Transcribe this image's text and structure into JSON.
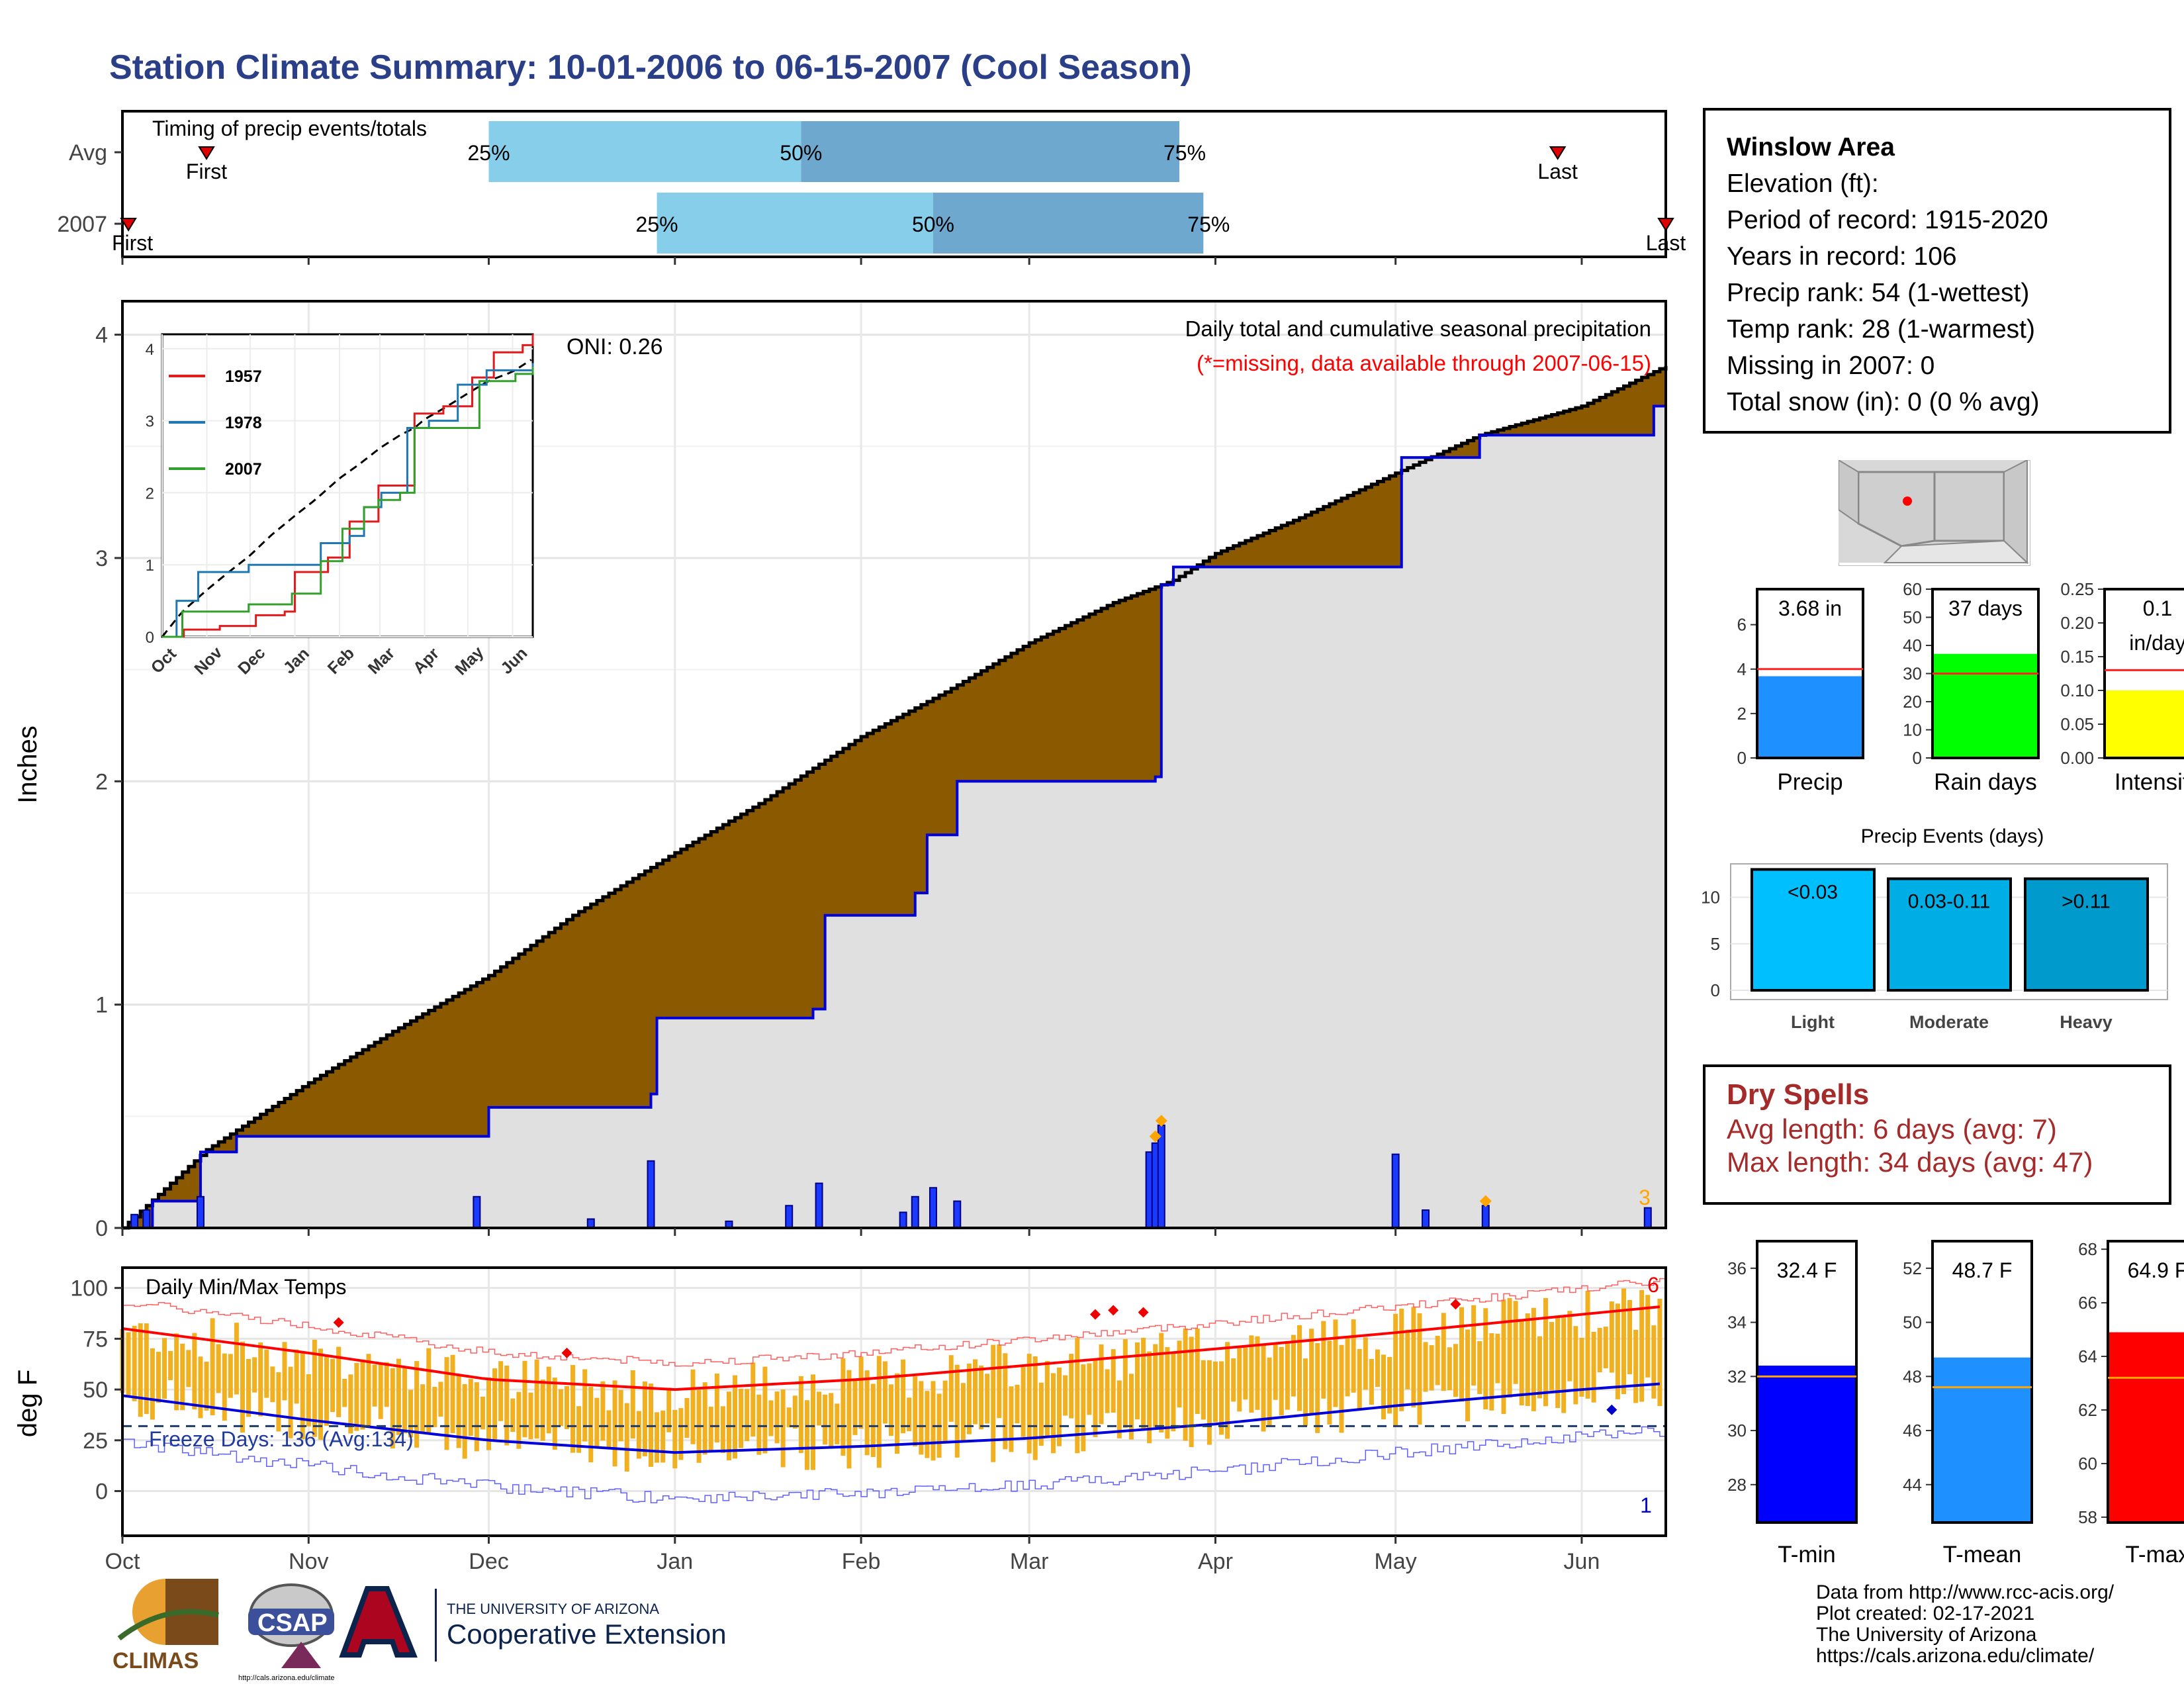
{
  "page": {
    "title": "Station Climate Summary: 10-01-2006 to 06-15-2007 (Cool Season)"
  },
  "timing": {
    "label": "Timing of precip events/totals",
    "rows": [
      {
        "name": "Avg",
        "first": "2006-10-15",
        "p25": "2006-12-01",
        "p50": "2007-01-22",
        "p75": "2007-03-26",
        "last": "2007-05-28"
      },
      {
        "name": "2007",
        "first": "2006-10-02",
        "p25": "2006-12-29",
        "p50": "2007-02-13",
        "p75": "2007-03-30",
        "last": "2007-06-15"
      }
    ],
    "first_label": "First",
    "last_label": "Last",
    "p25_label": "25%",
    "p50_label": "50%",
    "p75_label": "75%"
  },
  "precip_panel": {
    "title": "Daily total and cumulative seasonal precipitation",
    "subtitle": "(*=missing, data available through 2007-06-15)",
    "oni": "ONI: 0.26",
    "ylabel": "Inches",
    "corner_count": "3"
  },
  "inset": {
    "years": [
      "1957",
      "1978",
      "2007"
    ]
  },
  "temp_panel": {
    "title": "Daily Min/Max Temps",
    "freeze": "Freeze Days: 136 (Avg:134)",
    "ylabel": "deg F",
    "count_max": "6",
    "count_min": "1"
  },
  "months": [
    "Oct",
    "Nov",
    "Dec",
    "Jan",
    "Feb",
    "Mar",
    "Apr",
    "May",
    "Jun"
  ],
  "station": {
    "name": "Winslow Area",
    "lines": [
      "Elevation (ft):",
      "Period of record: 1915-2020",
      "Years in record: 106",
      "Precip rank: 54 (1-wettest)",
      "Temp rank: 28 (1-warmest)",
      "Missing in 2007: 0",
      "Total snow (in): 0 (0 % avg)"
    ]
  },
  "mini_bars": [
    {
      "label": "Precip",
      "value_text": "3.68 in",
      "value": 3.68,
      "avg": 4.0,
      "ymax": 7.6,
      "ticks": [
        0,
        2,
        4,
        6
      ],
      "color": "#1e90ff"
    },
    {
      "label": "Rain days",
      "value_text": "37 days",
      "value": 37,
      "avg": 30,
      "ymax": 60,
      "ticks": [
        0,
        10,
        20,
        30,
        40,
        50,
        60
      ],
      "color": "#00ff00"
    },
    {
      "label": "Intensity",
      "value_text": "0.1\nin/day",
      "value": 0.1,
      "avg": 0.13,
      "ymax": 0.25,
      "ticks": [
        "0.00",
        "0.05",
        "0.10",
        "0.15",
        "0.20",
        "0.25"
      ],
      "color": "#ffff00"
    }
  ],
  "events": {
    "title": "Precip Events (days)",
    "categories": [
      "Light",
      "Moderate",
      "Heavy"
    ],
    "bar_labels": [
      "<0.03",
      "0.03-0.11",
      ">0.11"
    ],
    "values": [
      13,
      12,
      12
    ],
    "colors": [
      "#00bfff",
      "#00aee6",
      "#009acd"
    ],
    "ticks": [
      0,
      5,
      10
    ]
  },
  "dry_spells": {
    "title": "Dry Spells",
    "avg_line": "Avg length: 6 days (avg: 7)",
    "max_line": "Max length: 34 days (avg: 47)"
  },
  "temp_bars": [
    {
      "label": "T-min",
      "value_text": "32.4 F",
      "value": 32.4,
      "avg": 32.0,
      "ymin": 26.6,
      "ymax": 37.0,
      "ticks": [
        28,
        30,
        32,
        34,
        36
      ],
      "color": "#0000ff"
    },
    {
      "label": "T-mean",
      "value_text": "48.7 F",
      "value": 48.7,
      "avg": 47.6,
      "ymin": 42.6,
      "ymax": 53.0,
      "ticks": [
        44,
        46,
        48,
        50,
        52
      ],
      "color": "#1e90ff"
    },
    {
      "label": "T-max",
      "value_text": "64.9 F",
      "value": 64.9,
      "avg": 63.2,
      "ymin": 57.8,
      "ymax": 68.3,
      "ticks": [
        58,
        60,
        62,
        64,
        66,
        68
      ],
      "color": "#ff0000"
    }
  ],
  "logos": {
    "climas": "CLIMAS",
    "csap": "CSAP",
    "csap_url": "http://cals.arizona.edu/climate",
    "ua_small": "THE UNIVERSITY OF ARIZONA",
    "ua_big": "Cooperative Extension"
  },
  "credits": [
    "Data from http://www.rcc-acis.org/",
    "Plot created: 02-17-2021",
    "The University of Arizona",
    "https://cals.arizona.edu/climate/"
  ],
  "chart_data": [
    {
      "type": "line",
      "title": "Daily total and cumulative seasonal precipitation",
      "ylabel": "Inches",
      "ylim": [
        0,
        4.15
      ],
      "x_range": [
        "2006-10-01",
        "2007-06-15"
      ],
      "series": [
        {
          "name": "average cumulative",
          "x": [
            "2006-10-01",
            "2006-10-15",
            "2006-11-01",
            "2006-11-15",
            "2006-12-01",
            "2006-12-15",
            "2007-01-01",
            "2007-01-15",
            "2007-02-01",
            "2007-02-15",
            "2007-03-01",
            "2007-03-15",
            "2007-03-25",
            "2007-04-01",
            "2007-04-15",
            "2007-05-01",
            "2007-05-15",
            "2007-06-01",
            "2007-06-15"
          ],
          "y": [
            0,
            0.35,
            0.65,
            0.88,
            1.13,
            1.4,
            1.68,
            1.9,
            2.2,
            2.4,
            2.62,
            2.8,
            2.9,
            3.02,
            3.18,
            3.38,
            3.55,
            3.68,
            3.86
          ]
        },
        {
          "name": "2007 cumulative",
          "x": [
            "2006-10-01",
            "2006-10-06",
            "2006-10-14",
            "2006-10-20",
            "2006-11-29",
            "2006-12-01",
            "2006-12-28",
            "2006-12-29",
            "2007-01-24",
            "2007-01-26",
            "2007-02-10",
            "2007-02-12",
            "2007-02-17",
            "2007-03-22",
            "2007-03-23",
            "2007-03-25",
            "2007-05-01",
            "2007-05-02",
            "2007-05-15",
            "2007-06-13",
            "2007-06-15"
          ],
          "y": [
            0.0,
            0.12,
            0.34,
            0.41,
            0.41,
            0.54,
            0.6,
            0.94,
            0.98,
            1.4,
            1.5,
            1.76,
            2.0,
            2.02,
            2.88,
            2.96,
            2.96,
            3.45,
            3.55,
            3.68,
            3.68
          ]
        },
        {
          "name": "daily precipitation",
          "x": [
            "2006-10-03",
            "2006-10-05",
            "2006-10-14",
            "2006-11-29",
            "2006-12-18",
            "2006-12-28",
            "2007-01-10",
            "2007-01-20",
            "2007-01-25",
            "2007-02-08",
            "2007-02-10",
            "2007-02-13",
            "2007-02-17",
            "2007-03-21",
            "2007-03-22",
            "2007-03-23",
            "2007-05-01",
            "2007-05-06",
            "2007-05-16",
            "2007-06-12"
          ],
          "y": [
            0.06,
            0.08,
            0.14,
            0.14,
            0.04,
            0.3,
            0.03,
            0.1,
            0.2,
            0.07,
            0.14,
            0.18,
            0.12,
            0.34,
            0.38,
            0.46,
            0.33,
            0.08,
            0.1,
            0.09
          ]
        }
      ]
    },
    {
      "type": "line",
      "title": "Daily Min/Max Temps",
      "ylabel": "deg F",
      "ylim": [
        -22,
        110
      ],
      "yticks": [
        0,
        25,
        50,
        75,
        100
      ],
      "series": [
        {
          "name": "average max",
          "x": [
            "2006-10-01",
            "2006-11-01",
            "2006-12-01",
            "2007-01-01",
            "2007-02-01",
            "2007-03-01",
            "2007-04-01",
            "2007-05-01",
            "2007-06-01",
            "2007-06-15"
          ],
          "y": [
            80,
            68,
            55,
            50,
            55,
            62,
            70,
            78,
            87,
            91
          ]
        },
        {
          "name": "average min",
          "x": [
            "2006-10-01",
            "2006-11-01",
            "2006-12-01",
            "2007-01-01",
            "2007-02-01",
            "2007-03-01",
            "2007-04-01",
            "2007-05-01",
            "2007-06-01",
            "2007-06-15"
          ],
          "y": [
            47,
            35,
            25,
            19,
            22,
            26,
            33,
            42,
            50,
            53
          ]
        }
      ]
    }
  ]
}
